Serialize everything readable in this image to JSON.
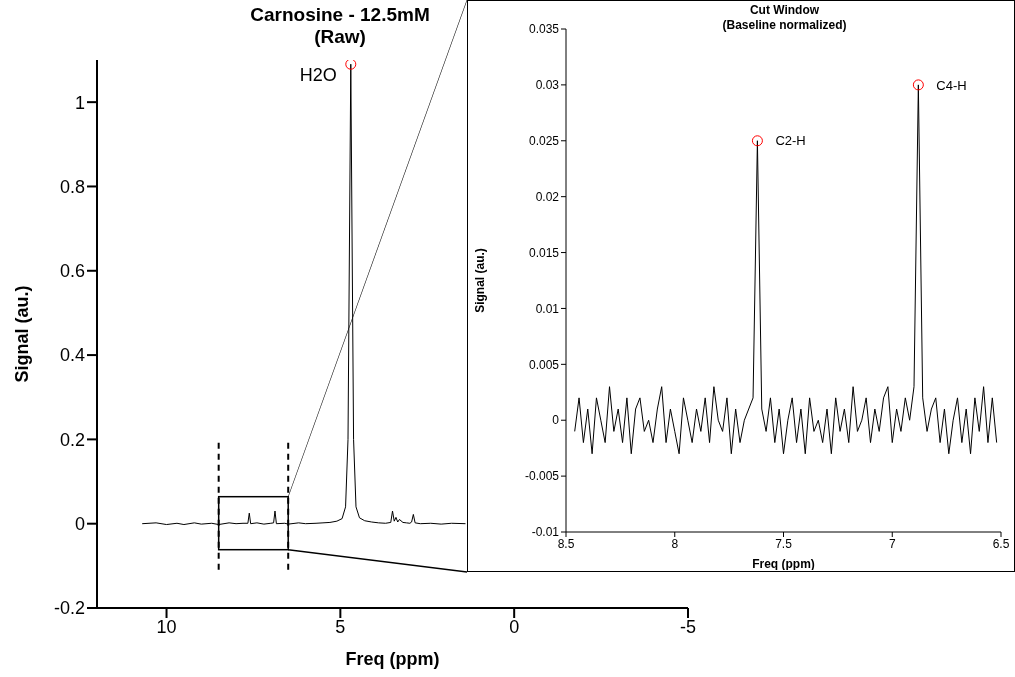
{
  "chart_data": [
    {
      "type": "line",
      "title": "Carnosine - 12.5mM",
      "subtitle": "(Raw)",
      "xlabel": "Freq (ppm)",
      "ylabel": "Signal (au.)",
      "xlim": [
        12,
        -5
      ],
      "xticks": [
        10,
        5,
        0,
        -5
      ],
      "ylim": [
        -0.2,
        1.1
      ],
      "yticks": [
        -0.2,
        0,
        0.2,
        0.4,
        0.6,
        0.8,
        1
      ],
      "grid": false,
      "legend": false,
      "series": [
        {
          "type": "line",
          "color": "#000000",
          "marker": "none",
          "line_style": "solid",
          "x": [
            10.7,
            10.3,
            10,
            9.7,
            9.5,
            9.2,
            9,
            8.7,
            8.5,
            8.2,
            8,
            7.8,
            7.66,
            7.62,
            7.58,
            7.4,
            7.2,
            7,
            6.92,
            6.88,
            6.84,
            6.6,
            6.5,
            6.2,
            6,
            5.7,
            5.5,
            5.3,
            5.1,
            4.95,
            4.85,
            4.78,
            4.7,
            4.62,
            4.55,
            4.45,
            4.3,
            4.1,
            3.9,
            3.7,
            3.55,
            3.5,
            3.45,
            3.4,
            3.35,
            3.3,
            3.2,
            3.1,
            3,
            2.95,
            2.9,
            2.85,
            2.7,
            2.4,
            2.1,
            1.8,
            1.4
          ],
          "values": [
            0,
            0.002,
            -0.002,
            0.001,
            -0.002,
            0.002,
            -0.001,
            0.001,
            -0.002,
            0.002,
            0,
            0.001,
            0.001,
            0.025,
            0,
            0.002,
            -0.001,
            0.001,
            0.002,
            0.03,
            0,
            0.001,
            -0.001,
            0.002,
            0,
            0.001,
            0.002,
            0.003,
            0.006,
            0.012,
            0.04,
            0.2,
            1.09,
            0.2,
            0.04,
            0.014,
            0.007,
            0.004,
            0.002,
            0.001,
            0.003,
            0.03,
            0.006,
            0.015,
            0.004,
            0.01,
            0.003,
            0.002,
            0.001,
            0.004,
            0.022,
            0.002,
            0,
            0.001,
            -0.001,
            0.001,
            0
          ]
        },
        {
          "type": "scatter",
          "color": "#ff0000",
          "marker": "circle",
          "x": [
            4.7
          ],
          "values": [
            1.09
          ]
        }
      ],
      "ref_lines": [
        {
          "axis": "x",
          "value": 8.5,
          "line_style": "dashed"
        },
        {
          "axis": "x",
          "value": 6.5,
          "line_style": "dashed"
        }
      ],
      "annotations": [
        {
          "text": "H2O",
          "x": 4.7,
          "y": 1.09
        }
      ]
    },
    {
      "type": "line",
      "title": "Cut Window",
      "subtitle": "(Baseline normalized)",
      "xlabel": "Freq (ppm)",
      "ylabel": "Signal (au.)",
      "xlim": [
        8.5,
        6.5
      ],
      "xticks": [
        8.5,
        8,
        7.5,
        7,
        6.5
      ],
      "ylim": [
        -0.01,
        0.035
      ],
      "yticks": [
        -0.01,
        -0.005,
        0,
        0.005,
        0.01,
        0.015,
        0.02,
        0.025,
        0.03,
        0.035
      ],
      "grid": false,
      "legend": false,
      "series": [
        {
          "type": "line",
          "color": "#000000",
          "marker": "none",
          "line_style": "solid",
          "x": [
            8.46,
            8.44,
            8.42,
            8.4,
            8.38,
            8.36,
            8.34,
            8.32,
            8.3,
            8.28,
            8.26,
            8.24,
            8.22,
            8.2,
            8.18,
            8.16,
            8.14,
            8.12,
            8.1,
            8.08,
            8.06,
            8.04,
            8.02,
            8.0,
            7.98,
            7.96,
            7.94,
            7.92,
            7.9,
            7.88,
            7.86,
            7.84,
            7.82,
            7.8,
            7.78,
            7.76,
            7.74,
            7.72,
            7.7,
            7.68,
            7.66,
            7.64,
            7.62,
            7.6,
            7.58,
            7.56,
            7.54,
            7.52,
            7.5,
            7.48,
            7.46,
            7.44,
            7.42,
            7.4,
            7.38,
            7.36,
            7.34,
            7.32,
            7.3,
            7.28,
            7.26,
            7.24,
            7.22,
            7.2,
            7.18,
            7.16,
            7.14,
            7.12,
            7.1,
            7.08,
            7.06,
            7.04,
            7.02,
            7.0,
            6.98,
            6.96,
            6.94,
            6.92,
            6.9,
            6.88,
            6.86,
            6.84,
            6.82,
            6.8,
            6.78,
            6.76,
            6.74,
            6.72,
            6.7,
            6.68,
            6.66,
            6.64,
            6.62,
            6.6,
            6.58,
            6.56,
            6.54,
            6.52
          ],
          "values": [
            -0.001,
            0.002,
            -0.002,
            0.001,
            -0.003,
            0.002,
            0,
            -0.002,
            0.003,
            -0.001,
            0.001,
            -0.002,
            0.002,
            -0.003,
            0.001,
            0.002,
            -0.001,
            0,
            -0.002,
            0.001,
            0.003,
            -0.002,
            0.001,
            -0.001,
            -0.003,
            0.002,
            0,
            -0.002,
            0.001,
            -0.001,
            0.002,
            -0.002,
            0.003,
            0,
            -0.001,
            0.002,
            -0.003,
            0.001,
            -0.002,
            0,
            0.001,
            0.002,
            0.025,
            0.001,
            -0.001,
            0.002,
            -0.002,
            0.001,
            -0.003,
            0,
            0.002,
            -0.002,
            0.001,
            -0.003,
            0.002,
            -0.001,
            0,
            -0.002,
            0.001,
            -0.003,
            0.002,
            -0.001,
            0.001,
            -0.002,
            0.003,
            -0.001,
            0,
            0.002,
            -0.002,
            0.001,
            -0.001,
            0.002,
            0.003,
            -0.002,
            0.001,
            -0.001,
            0.002,
            0,
            0.003,
            0.03,
            0.002,
            -0.001,
            0.001,
            0.002,
            -0.002,
            0.001,
            -0.003,
            0,
            0.002,
            -0.002,
            0.001,
            -0.003,
            0.002,
            -0.001,
            0.003,
            -0.002,
            0.002,
            -0.002
          ]
        },
        {
          "type": "scatter",
          "color": "#ff0000",
          "marker": "circle",
          "x": [
            7.62,
            6.88
          ],
          "values": [
            0.025,
            0.03
          ]
        }
      ],
      "annotations": [
        {
          "text": "C2-H",
          "x": 7.62,
          "y": 0.025
        },
        {
          "text": "C4-H",
          "x": 6.88,
          "y": 0.03
        }
      ]
    }
  ]
}
